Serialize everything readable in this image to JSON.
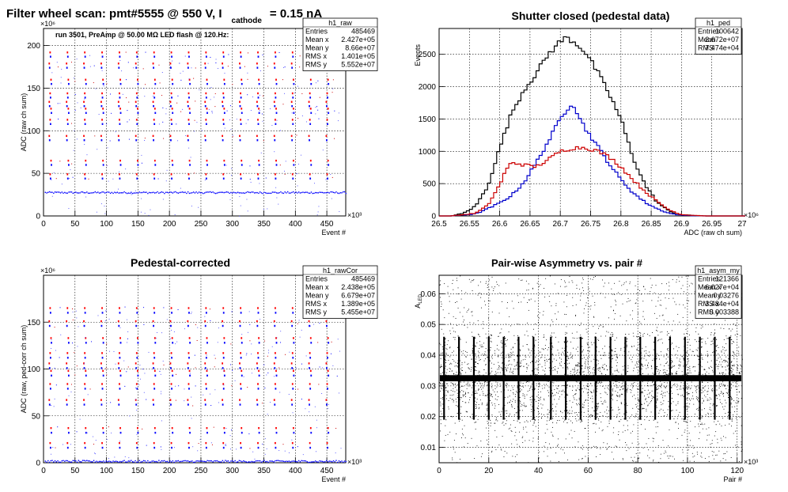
{
  "chart_data": [
    {
      "id": "raw",
      "type": "scatter",
      "title_main": "Filter wheel scan: pmt#5555 @   550 V, I",
      "title_sub": "cathode",
      "title_tail": "= 0.15 nA",
      "annotation": "run 3501, PreAmp @ 50.00 MΩ LED flash @  120.Hz:",
      "xlabel": "Event #",
      "ylabel": "ADC (raw ch sum)",
      "x_exponent": "×10³",
      "y_exponent": "×10⁶",
      "xlim": [
        0,
        480
      ],
      "ylim": [
        0,
        220
      ],
      "xticks": [
        "0",
        "50",
        "100",
        "150",
        "200",
        "250",
        "300",
        "350",
        "400",
        "450"
      ],
      "yticks": [
        "0",
        "50",
        "100",
        "150",
        "200"
      ],
      "grid": true,
      "stats": {
        "name": "h1_raw",
        "rows": [
          [
            "Entries",
            "485469"
          ],
          [
            "Mean x",
            "2.427e+05"
          ],
          [
            "Mean y",
            "8.66e+07"
          ],
          [
            "RMS x",
            "1.401e+05"
          ],
          [
            "RMS y",
            "5.552e+07"
          ]
        ]
      },
      "levels": [
        28,
        47,
        63,
        92,
        111,
        124,
        132,
        142,
        158,
        177,
        190
      ]
    },
    {
      "id": "ped",
      "type": "line",
      "title": "Shutter closed (pedestal data)",
      "xlabel": "ADC (raw ch sum)",
      "ylabel": "Events",
      "x_exponent": "×10⁶",
      "xlim": [
        26.5,
        27
      ],
      "ylim": [
        0,
        2900
      ],
      "xticks": [
        "26.5",
        "26.55",
        "26.6",
        "26.65",
        "26.7",
        "26.75",
        "26.8",
        "26.85",
        "26.9",
        "26.95",
        "27"
      ],
      "yticks": [
        "0",
        "500",
        "1000",
        "1500",
        "2000",
        "2500"
      ],
      "grid": true,
      "stats": {
        "name": "h1_ped",
        "rows": [
          [
            "Entries",
            "100642"
          ],
          [
            "Mean",
            "2.672e+07"
          ],
          [
            "RMS",
            "7.474e+04"
          ]
        ]
      },
      "series": [
        {
          "color": "#000000",
          "x": [
            26.52,
            26.54,
            26.56,
            26.58,
            26.6,
            26.62,
            26.64,
            26.66,
            26.68,
            26.7,
            26.71,
            26.72,
            26.73,
            26.74,
            26.76,
            26.78,
            26.8,
            26.82,
            26.84,
            26.86,
            26.88,
            26.9,
            26.92,
            26.94
          ],
          "y": [
            0,
            40,
            150,
            450,
            1050,
            1600,
            1950,
            2200,
            2500,
            2700,
            2760,
            2710,
            2640,
            2550,
            2250,
            1900,
            1500,
            900,
            480,
            210,
            70,
            20,
            5,
            0
          ]
        },
        {
          "color": "#0000cc",
          "x": [
            26.52,
            26.56,
            26.58,
            26.6,
            26.62,
            26.64,
            26.66,
            26.68,
            26.7,
            26.71,
            26.72,
            26.73,
            26.74,
            26.76,
            26.78,
            26.8,
            26.82,
            26.84,
            26.86,
            26.88,
            26.9,
            26.94
          ],
          "y": [
            0,
            30,
            110,
            200,
            320,
            520,
            820,
            1150,
            1500,
            1640,
            1760,
            1560,
            1370,
            1100,
            820,
            560,
            360,
            210,
            110,
            40,
            10,
            0
          ]
        },
        {
          "color": "#cc0000",
          "x": [
            26.52,
            26.56,
            26.58,
            26.6,
            26.61,
            26.62,
            26.64,
            26.66,
            26.68,
            26.7,
            26.72,
            26.74,
            26.76,
            26.78,
            26.8,
            26.82,
            26.84,
            26.86,
            26.88,
            26.9,
            26.94
          ],
          "y": [
            0,
            40,
            160,
            480,
            700,
            830,
            790,
            760,
            870,
            1000,
            1050,
            1060,
            1010,
            920,
            760,
            560,
            380,
            220,
            90,
            20,
            0
          ]
        }
      ]
    },
    {
      "id": "rawCor",
      "type": "scatter",
      "title": "Pedestal-corrected",
      "xlabel": "Event #",
      "ylabel": "ADC (raw, ped-corr ch sum)",
      "x_exponent": "×10³",
      "y_exponent": "×10⁶",
      "xlim": [
        0,
        480
      ],
      "ylim": [
        0,
        200
      ],
      "xticks": [
        "0",
        "50",
        "100",
        "150",
        "200",
        "250",
        "300",
        "350",
        "400",
        "450"
      ],
      "yticks": [
        "0",
        "50",
        "100",
        "150"
      ],
      "grid": true,
      "stats": {
        "name": "h1_rawCor",
        "rows": [
          [
            "Entries",
            "485469"
          ],
          [
            "Mean x",
            "2.438e+05"
          ],
          [
            "Mean y",
            "6.679e+07"
          ],
          [
            "RMS x",
            "1.389e+05"
          ],
          [
            "RMS y",
            "5.455e+07"
          ]
        ]
      },
      "levels": [
        2,
        19,
        35,
        65,
        82,
        96,
        104,
        115,
        131,
        149,
        163
      ]
    },
    {
      "id": "asym",
      "type": "scatter",
      "title": "Pair-wise Asymmetry vs. pair #",
      "xlabel": "Pair #",
      "ylabel": "A_LED",
      "x_exponent": "×10³",
      "xlim": [
        0,
        122
      ],
      "ylim": [
        0.005,
        0.066
      ],
      "xticks": [
        "0",
        "20",
        "40",
        "60",
        "80",
        "100",
        "120"
      ],
      "yticks": [
        "0.01",
        "0.02",
        "0.03",
        "0.04",
        "0.05",
        "0.06"
      ],
      "grid": true,
      "stats": {
        "name": "h1_asym_my",
        "rows": [
          [
            "Entries",
            "121366"
          ],
          [
            "Mean x",
            "6.027e+04"
          ],
          [
            "Mean y",
            "0.03276"
          ],
          [
            "RMS x",
            "3.484e+04"
          ],
          [
            "RMS y",
            "0.003388"
          ]
        ]
      },
      "band_center": 0.0325,
      "spike_x": [
        2,
        8,
        14,
        20,
        26,
        32,
        38,
        45,
        51,
        57,
        63,
        69,
        75,
        81,
        87,
        93,
        99,
        105,
        111,
        117
      ]
    }
  ]
}
